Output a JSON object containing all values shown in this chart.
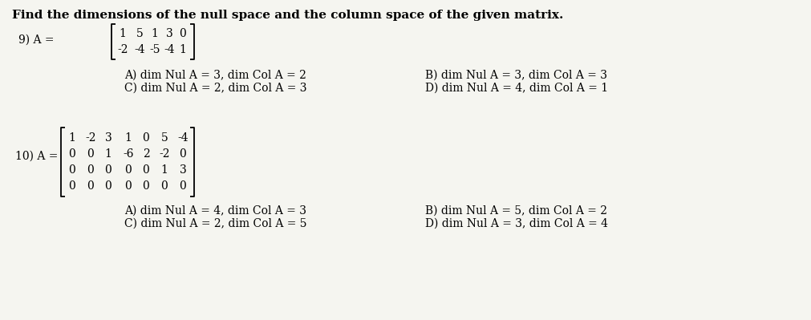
{
  "title": "Find the dimensions of the null space and the column space of the given matrix.",
  "background_color": "#f5f5f0",
  "text_color": "#000000",
  "q9_matrix_row1": [
    "1",
    "5",
    "1",
    "3",
    "0"
  ],
  "q9_matrix_row2": [
    "-2",
    "-4",
    "-5",
    "-4",
    "1"
  ],
  "q9_answers": [
    "A) dim Nul A = 3, dim Col A = 2",
    "C) dim Nul A = 2, dim Col A = 3",
    "B) dim Nul A = 3, dim Col A = 3",
    "D) dim Nul A = 4, dim Col A = 1"
  ],
  "q10_matrix_row1": [
    "1",
    "-2",
    "3",
    "1",
    "0",
    "5",
    "-4"
  ],
  "q10_matrix_row2": [
    "0",
    "0",
    "1",
    "-6",
    "2",
    "-2",
    "0"
  ],
  "q10_matrix_row3": [
    "0",
    "0",
    "0",
    "0",
    "0",
    "1",
    "3"
  ],
  "q10_matrix_row4": [
    "0",
    "0",
    "0",
    "0",
    "0",
    "0",
    "0"
  ],
  "q10_answers": [
    "A) dim Nul A = 4, dim Col A = 3",
    "C) dim Nul A = 2, dim Col A = 5",
    "B) dim Nul A = 5, dim Col A = 2",
    "D) dim Nul A = 3, dim Col A = 4"
  ]
}
